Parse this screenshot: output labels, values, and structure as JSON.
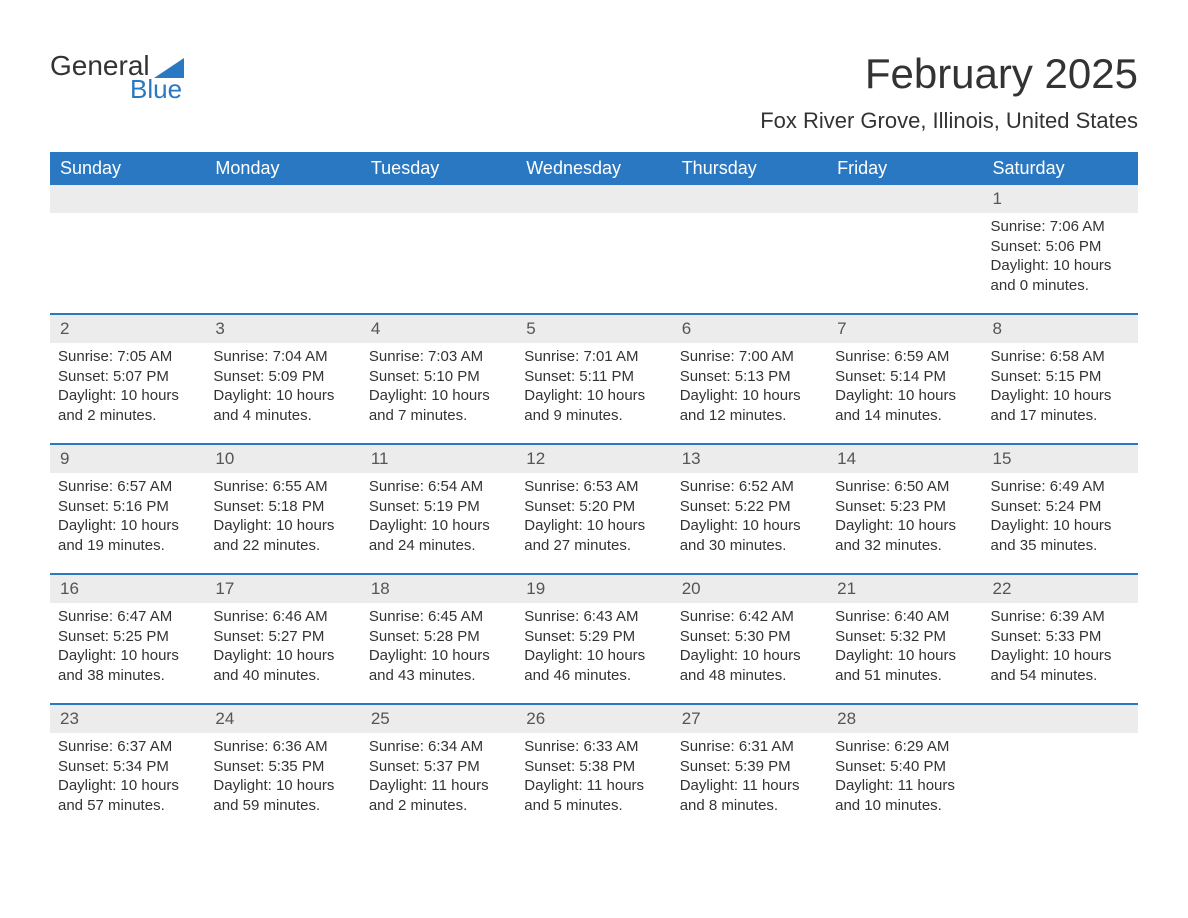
{
  "brand": {
    "name1": "General",
    "name2": "Blue",
    "accent": "#2b78c2"
  },
  "title": "February 2025",
  "location": "Fox River Grove, Illinois, United States",
  "columns": [
    "Sunday",
    "Monday",
    "Tuesday",
    "Wednesday",
    "Thursday",
    "Friday",
    "Saturday"
  ],
  "weeks": [
    [
      {
        "num": ""
      },
      {
        "num": ""
      },
      {
        "num": ""
      },
      {
        "num": ""
      },
      {
        "num": ""
      },
      {
        "num": ""
      },
      {
        "num": "1",
        "sunrise": "Sunrise: 7:06 AM",
        "sunset": "Sunset: 5:06 PM",
        "dl1": "Daylight: 10 hours",
        "dl2": "and 0 minutes."
      }
    ],
    [
      {
        "num": "2",
        "sunrise": "Sunrise: 7:05 AM",
        "sunset": "Sunset: 5:07 PM",
        "dl1": "Daylight: 10 hours",
        "dl2": "and 2 minutes."
      },
      {
        "num": "3",
        "sunrise": "Sunrise: 7:04 AM",
        "sunset": "Sunset: 5:09 PM",
        "dl1": "Daylight: 10 hours",
        "dl2": "and 4 minutes."
      },
      {
        "num": "4",
        "sunrise": "Sunrise: 7:03 AM",
        "sunset": "Sunset: 5:10 PM",
        "dl1": "Daylight: 10 hours",
        "dl2": "and 7 minutes."
      },
      {
        "num": "5",
        "sunrise": "Sunrise: 7:01 AM",
        "sunset": "Sunset: 5:11 PM",
        "dl1": "Daylight: 10 hours",
        "dl2": "and 9 minutes."
      },
      {
        "num": "6",
        "sunrise": "Sunrise: 7:00 AM",
        "sunset": "Sunset: 5:13 PM",
        "dl1": "Daylight: 10 hours",
        "dl2": "and 12 minutes."
      },
      {
        "num": "7",
        "sunrise": "Sunrise: 6:59 AM",
        "sunset": "Sunset: 5:14 PM",
        "dl1": "Daylight: 10 hours",
        "dl2": "and 14 minutes."
      },
      {
        "num": "8",
        "sunrise": "Sunrise: 6:58 AM",
        "sunset": "Sunset: 5:15 PM",
        "dl1": "Daylight: 10 hours",
        "dl2": "and 17 minutes."
      }
    ],
    [
      {
        "num": "9",
        "sunrise": "Sunrise: 6:57 AM",
        "sunset": "Sunset: 5:16 PM",
        "dl1": "Daylight: 10 hours",
        "dl2": "and 19 minutes."
      },
      {
        "num": "10",
        "sunrise": "Sunrise: 6:55 AM",
        "sunset": "Sunset: 5:18 PM",
        "dl1": "Daylight: 10 hours",
        "dl2": "and 22 minutes."
      },
      {
        "num": "11",
        "sunrise": "Sunrise: 6:54 AM",
        "sunset": "Sunset: 5:19 PM",
        "dl1": "Daylight: 10 hours",
        "dl2": "and 24 minutes."
      },
      {
        "num": "12",
        "sunrise": "Sunrise: 6:53 AM",
        "sunset": "Sunset: 5:20 PM",
        "dl1": "Daylight: 10 hours",
        "dl2": "and 27 minutes."
      },
      {
        "num": "13",
        "sunrise": "Sunrise: 6:52 AM",
        "sunset": "Sunset: 5:22 PM",
        "dl1": "Daylight: 10 hours",
        "dl2": "and 30 minutes."
      },
      {
        "num": "14",
        "sunrise": "Sunrise: 6:50 AM",
        "sunset": "Sunset: 5:23 PM",
        "dl1": "Daylight: 10 hours",
        "dl2": "and 32 minutes."
      },
      {
        "num": "15",
        "sunrise": "Sunrise: 6:49 AM",
        "sunset": "Sunset: 5:24 PM",
        "dl1": "Daylight: 10 hours",
        "dl2": "and 35 minutes."
      }
    ],
    [
      {
        "num": "16",
        "sunrise": "Sunrise: 6:47 AM",
        "sunset": "Sunset: 5:25 PM",
        "dl1": "Daylight: 10 hours",
        "dl2": "and 38 minutes."
      },
      {
        "num": "17",
        "sunrise": "Sunrise: 6:46 AM",
        "sunset": "Sunset: 5:27 PM",
        "dl1": "Daylight: 10 hours",
        "dl2": "and 40 minutes."
      },
      {
        "num": "18",
        "sunrise": "Sunrise: 6:45 AM",
        "sunset": "Sunset: 5:28 PM",
        "dl1": "Daylight: 10 hours",
        "dl2": "and 43 minutes."
      },
      {
        "num": "19",
        "sunrise": "Sunrise: 6:43 AM",
        "sunset": "Sunset: 5:29 PM",
        "dl1": "Daylight: 10 hours",
        "dl2": "and 46 minutes."
      },
      {
        "num": "20",
        "sunrise": "Sunrise: 6:42 AM",
        "sunset": "Sunset: 5:30 PM",
        "dl1": "Daylight: 10 hours",
        "dl2": "and 48 minutes."
      },
      {
        "num": "21",
        "sunrise": "Sunrise: 6:40 AM",
        "sunset": "Sunset: 5:32 PM",
        "dl1": "Daylight: 10 hours",
        "dl2": "and 51 minutes."
      },
      {
        "num": "22",
        "sunrise": "Sunrise: 6:39 AM",
        "sunset": "Sunset: 5:33 PM",
        "dl1": "Daylight: 10 hours",
        "dl2": "and 54 minutes."
      }
    ],
    [
      {
        "num": "23",
        "sunrise": "Sunrise: 6:37 AM",
        "sunset": "Sunset: 5:34 PM",
        "dl1": "Daylight: 10 hours",
        "dl2": "and 57 minutes."
      },
      {
        "num": "24",
        "sunrise": "Sunrise: 6:36 AM",
        "sunset": "Sunset: 5:35 PM",
        "dl1": "Daylight: 10 hours",
        "dl2": "and 59 minutes."
      },
      {
        "num": "25",
        "sunrise": "Sunrise: 6:34 AM",
        "sunset": "Sunset: 5:37 PM",
        "dl1": "Daylight: 11 hours",
        "dl2": "and 2 minutes."
      },
      {
        "num": "26",
        "sunrise": "Sunrise: 6:33 AM",
        "sunset": "Sunset: 5:38 PM",
        "dl1": "Daylight: 11 hours",
        "dl2": "and 5 minutes."
      },
      {
        "num": "27",
        "sunrise": "Sunrise: 6:31 AM",
        "sunset": "Sunset: 5:39 PM",
        "dl1": "Daylight: 11 hours",
        "dl2": "and 8 minutes."
      },
      {
        "num": "28",
        "sunrise": "Sunrise: 6:29 AM",
        "sunset": "Sunset: 5:40 PM",
        "dl1": "Daylight: 11 hours",
        "dl2": "and 10 minutes."
      },
      {
        "num": ""
      }
    ]
  ],
  "style": {
    "header_bg": "#2b78c2",
    "header_fg": "#ffffff",
    "daynum_bg": "#ececec",
    "row_border": "#2b78c2",
    "text_color": "#333333",
    "body_bg": "#ffffff",
    "title_fontsize": 42,
    "subtitle_fontsize": 22,
    "header_fontsize": 18,
    "cell_fontsize": 15
  }
}
